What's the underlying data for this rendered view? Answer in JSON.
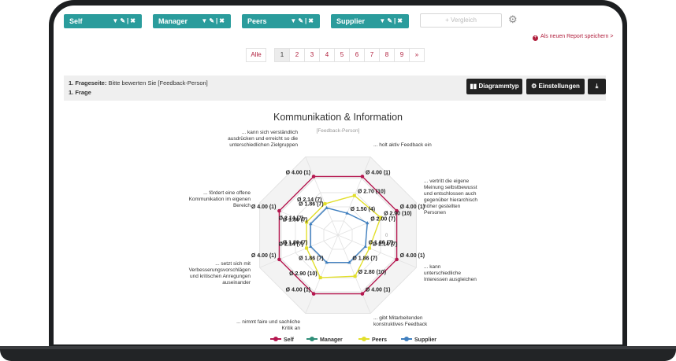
{
  "filters": [
    {
      "label": "Self"
    },
    {
      "label": "Manager"
    },
    {
      "label": "Peers"
    },
    {
      "label": "Supplier"
    }
  ],
  "compare_label": "Vergleich",
  "save_report_label": "Als neuen Report speichern >",
  "pagination": [
    "Alle",
    "1",
    "2",
    "3",
    "4",
    "5",
    "6",
    "7",
    "8",
    "9",
    "»"
  ],
  "pagination_active": "1",
  "question": {
    "page_label": "1. Frageseite:",
    "page_text": "Bitte bewerten Sie [Feedback-Person]",
    "question_label": "1. Frage"
  },
  "toolbar": {
    "chart_type_label": "Diagrammtyp",
    "settings_label": "Einstellungen"
  },
  "chart_data": {
    "type": "radar",
    "title": "Kommunikation & Information",
    "subtitle": "[Feedback-Person]",
    "scale_max": 4,
    "scale_labels": [
      "4",
      "0"
    ],
    "categories": [
      "... kann sich verständlich ausdrücken und erreicht so die unterschiedlichen Zielgruppen",
      "... holt aktiv Feedback ein",
      "... vertritt die eigene Meinung selbstbewusst und entschlossen auch gegenüber hierarchisch höher gestellten Personen",
      "... kann unterschiedliche Interessen ausgleichen",
      "... gibt Mitarbeitenden konstruktives Feedback",
      "... nimmt faire und sachliche Kritik an",
      "... setzt sich mit Verbesserungsvorschlägen und kritischen Anregungen auseinander",
      "... fördert eine offene Kommunikation im eigenen Bereich"
    ],
    "series": [
      {
        "name": "Self",
        "color": "#b5174f",
        "values": [
          4.0,
          4.0,
          4.0,
          4.0,
          4.0,
          4.0,
          4.0,
          4.0
        ],
        "labels": [
          "Ø 4.00 (1)",
          "Ø 4.00 (1)",
          "Ø 4.00 (1)",
          "Ø 4.00 (1)",
          "Ø 4.00 (1)",
          "Ø 4.00 (1)",
          "Ø 4.00 (1)",
          "Ø 4.00 (1)"
        ]
      },
      {
        "name": "Manager",
        "color": "#2f8e78",
        "values": [
          null,
          null,
          null,
          null,
          null,
          null,
          null,
          null
        ],
        "labels": []
      },
      {
        "name": "Peers",
        "color": "#e2df2a",
        "values": [
          2.7,
          2.9,
          2.14,
          2.8,
          2.9,
          2.14,
          2.14,
          2.14
        ],
        "labels": [
          "Ø 2.70 (10)",
          "Ø 2.90 (10)",
          "Ø 2.14 (7)",
          "Ø 2.80 (10)",
          "Ø 2.90 (10)",
          "Ø 2.14 (7)",
          "Ø 2.14 (7)",
          "Ø 2.14 (7)"
        ]
      },
      {
        "name": "Supplier",
        "color": "#3f7fbf",
        "values": [
          1.5,
          2.0,
          1.86,
          1.86,
          1.86,
          1.86,
          1.86,
          1.86
        ],
        "labels": [
          "Ø 1.50 (4)",
          "Ø 2.00 (7)",
          "Ø 1.86 (7)",
          "Ø 1.86 (7)",
          "Ø 1.86 (7)",
          "Ø 1.86 (7)",
          "Ø 1.86 (7)",
          "Ø 1.86 (7)"
        ]
      }
    ],
    "legend_position": "bottom"
  }
}
